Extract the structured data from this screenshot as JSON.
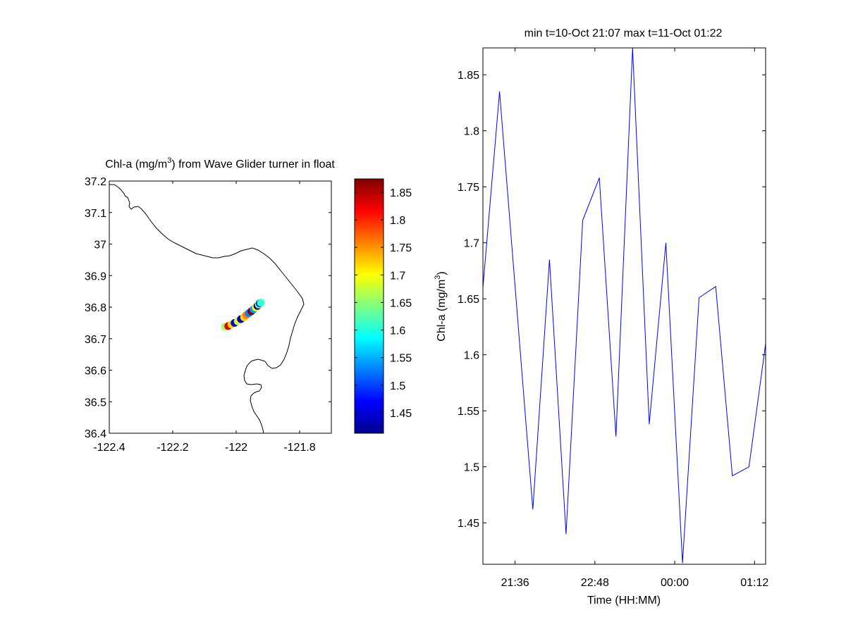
{
  "figure": {
    "background": "#ffffff"
  },
  "map_panel": {
    "title_prefix": "Chl-a (mg/m",
    "title_sup": "3",
    "title_suffix": ") from Wave Glider turner in float",
    "x_ticks": [
      "-122.4",
      "-122.2",
      "-122",
      "-121.8"
    ],
    "y_ticks": [
      "37.2",
      "37.1",
      "37",
      "36.9",
      "36.8",
      "36.7",
      "36.6",
      "36.5",
      "36.4"
    ],
    "xlim": [
      -122.4,
      -121.7
    ],
    "ylim": [
      36.4,
      37.2
    ],
    "coastline_color": "#000000",
    "colormap": "jet",
    "colorbar": {
      "ticks": [
        "1.85",
        "1.8",
        "1.75",
        "1.7",
        "1.65",
        "1.6",
        "1.55",
        "1.5",
        "1.45"
      ],
      "clim": [
        1.413,
        1.874
      ]
    }
  },
  "chart_data": [
    {
      "type": "scatter",
      "title": "Chl-a (mg/m3) from Wave Glider turner in float",
      "xlabel": "",
      "ylabel": "",
      "xlim": [
        -122.4,
        -121.7
      ],
      "ylim": [
        36.4,
        37.2
      ],
      "colorbar_range": [
        1.413,
        1.874
      ],
      "colormap": "jet",
      "x_ticks": [
        -122.4,
        -122.2,
        -122,
        -121.8
      ],
      "y_ticks": [
        36.4,
        36.5,
        36.6,
        36.7,
        36.8,
        36.9,
        37.0,
        37.1,
        37.2
      ],
      "colorbar_ticks": [
        1.45,
        1.5,
        1.55,
        1.6,
        1.65,
        1.7,
        1.75,
        1.8,
        1.85
      ],
      "points": [
        {
          "lon": -122.035,
          "lat": 36.738,
          "value": 1.66
        },
        {
          "lon": -122.025,
          "lat": 36.74,
          "value": 1.83
        },
        {
          "lon": -122.015,
          "lat": 36.745,
          "value": 1.72
        },
        {
          "lon": -122.005,
          "lat": 36.75,
          "value": 1.46
        },
        {
          "lon": -121.995,
          "lat": 36.755,
          "value": 1.68
        },
        {
          "lon": -121.985,
          "lat": 36.762,
          "value": 1.44
        },
        {
          "lon": -121.975,
          "lat": 36.768,
          "value": 1.72
        },
        {
          "lon": -121.968,
          "lat": 36.775,
          "value": 1.76
        },
        {
          "lon": -121.96,
          "lat": 36.781,
          "value": 1.53
        },
        {
          "lon": -121.952,
          "lat": 36.787,
          "value": 1.87
        },
        {
          "lon": -121.945,
          "lat": 36.793,
          "value": 1.54
        },
        {
          "lon": -121.938,
          "lat": 36.799,
          "value": 1.7
        },
        {
          "lon": -121.933,
          "lat": 36.804,
          "value": 1.42
        },
        {
          "lon": -121.929,
          "lat": 36.808,
          "value": 1.65
        },
        {
          "lon": -121.926,
          "lat": 36.812,
          "value": 1.49
        },
        {
          "lon": -121.922,
          "lat": 36.814,
          "value": 1.61
        }
      ]
    },
    {
      "type": "line",
      "title": "min t=10-Oct 21:07 max t=11-Oct 01:22",
      "xlabel": "Time (HH:MM)",
      "ylabel": "Chl-a (mg/m3)",
      "x_unit": "HH:MM",
      "xlim": [
        "21:07",
        "01:22"
      ],
      "ylim": [
        1.413,
        1.874
      ],
      "x_ticks": [
        "21:36",
        "22:48",
        "00:00",
        "01:12"
      ],
      "y_ticks": [
        1.45,
        1.5,
        1.55,
        1.6,
        1.65,
        1.7,
        1.75,
        1.8,
        1.85
      ],
      "series": [
        {
          "color": "#0000ff",
          "x": [
            "21:07",
            "21:22",
            "21:52",
            "22:07",
            "22:22",
            "22:37",
            "22:52",
            "23:07",
            "23:22",
            "23:37",
            "23:52",
            "00:07",
            "00:22",
            "00:37",
            "00:52",
            "01:07",
            "01:22"
          ],
          "values": [
            1.66,
            1.835,
            1.462,
            1.685,
            1.44,
            1.72,
            1.758,
            1.527,
            1.874,
            1.538,
            1.7,
            1.414,
            1.651,
            1.661,
            1.492,
            1.5,
            1.61
          ]
        }
      ]
    }
  ],
  "line_panel": {
    "title": "min t=10-Oct 21:07 max t=11-Oct 01:22",
    "xlabel": "Time (HH:MM)",
    "ylabel_prefix": "Chl-a (mg/m",
    "ylabel_sup": "3",
    "ylabel_suffix": ")",
    "x_ticks": [
      "21:36",
      "22:48",
      "00:00",
      "01:12"
    ],
    "y_ticks": [
      "1.85",
      "1.8",
      "1.75",
      "1.7",
      "1.65",
      "1.6",
      "1.55",
      "1.5",
      "1.45"
    ]
  }
}
